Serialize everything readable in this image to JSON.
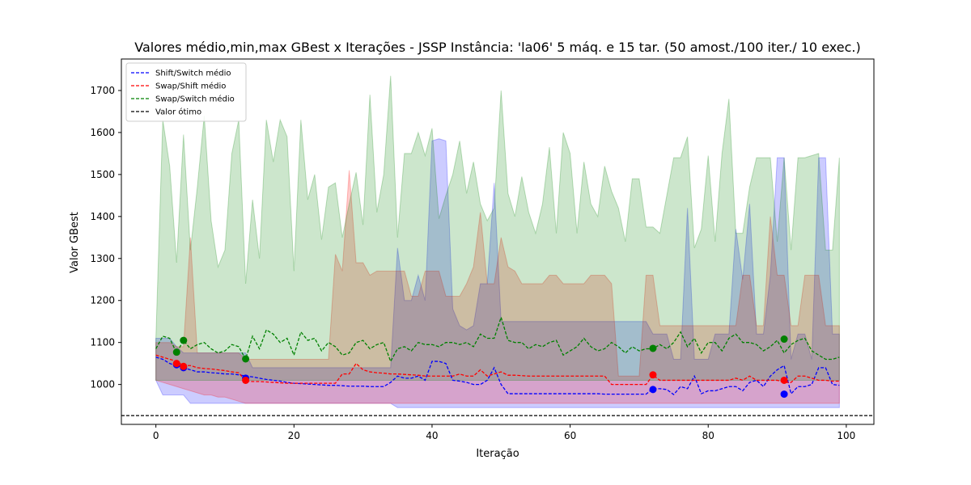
{
  "chart_data": {
    "type": "line",
    "title": "Valores médio,min,max GBest x Iterações - JSSP Instância: 'la06' 5 máq. e 15 tar. (50 amost./100 iter./ 10 exec.)",
    "xlabel": "Iteração",
    "ylabel": "Valor GBest",
    "xlim": [
      -5,
      104
    ],
    "ylim": [
      905,
      1775
    ],
    "xticks": [
      0,
      20,
      40,
      60,
      80,
      100
    ],
    "yticks": [
      1000,
      1100,
      1200,
      1300,
      1400,
      1500,
      1600,
      1700
    ],
    "grid": false,
    "legend_position": "top-left",
    "optimum": {
      "name": "Valor ótimo",
      "value": 926,
      "color": "#000000"
    },
    "series": [
      {
        "name": "Shift/Switch médio",
        "color": "#0000ff",
        "fill_color": "#0000ff",
        "mean": [
          1065,
          1060,
          1050,
          1045,
          1040,
          1035,
          1030,
          1030,
          1028,
          1027,
          1025,
          1025,
          1023,
          1020,
          1018,
          1015,
          1012,
          1010,
          1008,
          1005,
          1003,
          1002,
          1001,
          1000,
          999,
          998,
          998,
          997,
          996,
          996,
          996,
          995,
          995,
          995,
          1005,
          1020,
          1015,
          1015,
          1020,
          1010,
          1055,
          1055,
          1050,
          1010,
          1008,
          1005,
          1000,
          1000,
          1010,
          1040,
          1000,
          978,
          978,
          978,
          978,
          978,
          978,
          978,
          978,
          978,
          978,
          978,
          978,
          978,
          978,
          977,
          977,
          977,
          977,
          977,
          977,
          977,
          990,
          990,
          988,
          976,
          995,
          990,
          1020,
          978,
          985,
          985,
          990,
          995,
          995,
          985,
          1005,
          1010,
          995,
          1020,
          1035,
          1045,
          978,
          995,
          995,
          1000,
          1040,
          1040,
          1000,
          998
        ],
        "min": [
          1010,
          975,
          975,
          975,
          975,
          955,
          955,
          955,
          955,
          955,
          955,
          955,
          955,
          955,
          955,
          955,
          955,
          955,
          955,
          955,
          955,
          955,
          955,
          955,
          955,
          955,
          955,
          955,
          955,
          955,
          955,
          955,
          955,
          955,
          955,
          945,
          945,
          945,
          945,
          945,
          945,
          945,
          945,
          945,
          945,
          945,
          945,
          945,
          945,
          945,
          945,
          945,
          945,
          945,
          945,
          945,
          945,
          945,
          945,
          945,
          945,
          945,
          945,
          945,
          945,
          945,
          945,
          945,
          945,
          945,
          945,
          945,
          945,
          945,
          945,
          945,
          945,
          945,
          945,
          945,
          945,
          945,
          945,
          945,
          945,
          945,
          945,
          945,
          945,
          945,
          945,
          945,
          945,
          945,
          945,
          945,
          945,
          945,
          945,
          945
        ],
        "max": [
          1110,
          1110,
          1110,
          1090,
          1075,
          1075,
          1075,
          1075,
          1075,
          1075,
          1075,
          1075,
          1075,
          1075,
          1040,
          1040,
          1040,
          1040,
          1040,
          1040,
          1040,
          1040,
          1040,
          1040,
          1040,
          1040,
          1040,
          1040,
          1040,
          1040,
          1040,
          1040,
          1040,
          1040,
          1040,
          1325,
          1200,
          1200,
          1260,
          1200,
          1580,
          1585,
          1580,
          1180,
          1140,
          1130,
          1140,
          1240,
          1240,
          1480,
          1150,
          1150,
          1150,
          1150,
          1150,
          1150,
          1150,
          1150,
          1150,
          1150,
          1150,
          1150,
          1150,
          1150,
          1150,
          1150,
          1150,
          1150,
          1150,
          1150,
          1150,
          1150,
          1120,
          1120,
          1120,
          1060,
          1060,
          1420,
          1060,
          1060,
          1060,
          1120,
          1120,
          1120,
          1370,
          1250,
          1430,
          1120,
          1120,
          1260,
          1540,
          1540,
          1060,
          1120,
          1120,
          1060,
          1540,
          1540,
          1120,
          1120
        ]
      },
      {
        "name": "Swap/Shift médio",
        "color": "#ff0000",
        "fill_color": "#ff0000",
        "mean": [
          1070,
          1065,
          1060,
          1055,
          1045,
          1045,
          1040,
          1038,
          1037,
          1035,
          1033,
          1030,
          1028,
          1008,
          1007,
          1007,
          1006,
          1005,
          1004,
          1003,
          1003,
          1003,
          1003,
          1003,
          1003,
          1003,
          1003,
          1025,
          1025,
          1050,
          1035,
          1030,
          1028,
          1027,
          1025,
          1025,
          1024,
          1023,
          1022,
          1020,
          1020,
          1020,
          1020,
          1020,
          1025,
          1020,
          1020,
          1035,
          1020,
          1025,
          1030,
          1022,
          1022,
          1021,
          1020,
          1020,
          1020,
          1020,
          1020,
          1020,
          1020,
          1020,
          1020,
          1020,
          1020,
          1020,
          1000,
          1000,
          1000,
          1000,
          1000,
          1000,
          1022,
          1010,
          1010,
          1010,
          1010,
          1010,
          1010,
          1010,
          1010,
          1010,
          1010,
          1010,
          1015,
          1010,
          1020,
          1010,
          1010,
          1010,
          1010,
          1005,
          1005,
          1020,
          1020,
          1015,
          1010,
          1010,
          1008,
          1008
        ],
        "min": [
          1010,
          1005,
          1000,
          995,
          990,
          985,
          980,
          975,
          975,
          970,
          970,
          965,
          960,
          955,
          955,
          955,
          955,
          955,
          955,
          955,
          955,
          955,
          955,
          955,
          955,
          955,
          955,
          955,
          955,
          955,
          955,
          955,
          955,
          955,
          955,
          955,
          955,
          955,
          955,
          955,
          955,
          955,
          955,
          955,
          955,
          955,
          955,
          955,
          955,
          955,
          955,
          955,
          955,
          955,
          955,
          955,
          955,
          955,
          955,
          955,
          955,
          955,
          955,
          955,
          955,
          955,
          955,
          955,
          955,
          955,
          955,
          955,
          955,
          955,
          955,
          955,
          955,
          955,
          955,
          955,
          955,
          955,
          955,
          955,
          955,
          955,
          955,
          955,
          955,
          955,
          955,
          955,
          955,
          955,
          955,
          955,
          955,
          955,
          955,
          955
        ],
        "max": [
          1100,
          1100,
          1100,
          1090,
          1090,
          1350,
          1075,
          1075,
          1075,
          1075,
          1075,
          1075,
          1075,
          1060,
          1060,
          1060,
          1060,
          1060,
          1060,
          1060,
          1060,
          1060,
          1060,
          1060,
          1060,
          1060,
          1310,
          1270,
          1510,
          1290,
          1290,
          1260,
          1270,
          1270,
          1270,
          1270,
          1270,
          1210,
          1210,
          1270,
          1270,
          1270,
          1210,
          1210,
          1210,
          1240,
          1280,
          1410,
          1240,
          1240,
          1350,
          1280,
          1270,
          1240,
          1240,
          1240,
          1240,
          1260,
          1260,
          1240,
          1240,
          1240,
          1240,
          1260,
          1260,
          1260,
          1240,
          1020,
          1020,
          1020,
          1020,
          1260,
          1260,
          1140,
          1140,
          1140,
          1140,
          1140,
          1140,
          1140,
          1140,
          1140,
          1140,
          1140,
          1140,
          1260,
          1260,
          1140,
          1140,
          1400,
          1260,
          1260,
          1140,
          1140,
          1260,
          1260,
          1260,
          1140,
          1140,
          1140
        ]
      },
      {
        "name": "Swap/Switch médio",
        "color": "#008000",
        "fill_color": "#008000",
        "mean": [
          1085,
          1115,
          1110,
          1075,
          1105,
          1085,
          1095,
          1100,
          1085,
          1075,
          1080,
          1095,
          1090,
          1060,
          1115,
          1085,
          1130,
          1120,
          1100,
          1110,
          1070,
          1125,
          1105,
          1110,
          1080,
          1100,
          1090,
          1070,
          1075,
          1100,
          1105,
          1085,
          1095,
          1100,
          1055,
          1085,
          1090,
          1080,
          1100,
          1095,
          1095,
          1090,
          1100,
          1100,
          1095,
          1100,
          1090,
          1120,
          1110,
          1110,
          1160,
          1105,
          1100,
          1100,
          1085,
          1095,
          1090,
          1100,
          1105,
          1070,
          1080,
          1090,
          1110,
          1090,
          1080,
          1085,
          1100,
          1090,
          1075,
          1090,
          1080,
          1085,
          1085,
          1095,
          1085,
          1100,
          1125,
          1090,
          1110,
          1075,
          1100,
          1100,
          1080,
          1110,
          1120,
          1100,
          1100,
          1095,
          1080,
          1090,
          1105,
          1075,
          1095,
          1105,
          1110,
          1080,
          1070,
          1060,
          1060,
          1065
        ],
        "min": [
          1010,
          1010,
          1010,
          1010,
          1010,
          1010,
          1010,
          1010,
          1010,
          1010,
          1010,
          1010,
          1010,
          1010,
          1010,
          1010,
          1010,
          1010,
          1010,
          1010,
          1010,
          1010,
          1010,
          1010,
          1010,
          1010,
          1010,
          1010,
          1010,
          1010,
          1010,
          1010,
          1010,
          1010,
          1010,
          1010,
          1010,
          1010,
          1010,
          1010,
          1010,
          1010,
          1010,
          1010,
          1010,
          1010,
          1010,
          1010,
          1010,
          1010,
          1010,
          1010,
          1010,
          1010,
          1010,
          1010,
          1010,
          1010,
          1010,
          1010,
          1010,
          1010,
          1010,
          1010,
          1010,
          1010,
          1010,
          1010,
          1010,
          1010,
          1010,
          1010,
          1010,
          1010,
          1010,
          1010,
          1010,
          1010,
          1010,
          1010,
          1010,
          1010,
          1010,
          1010,
          1010,
          1010,
          1010,
          1010,
          1010,
          1010,
          1010,
          1010,
          1010,
          1010,
          1010,
          1010,
          1010,
          1010,
          1010,
          1010
        ],
        "max": [
          1110,
          1630,
          1520,
          1290,
          1595,
          1320,
          1470,
          1640,
          1390,
          1280,
          1320,
          1550,
          1630,
          1240,
          1440,
          1300,
          1630,
          1530,
          1630,
          1590,
          1270,
          1630,
          1440,
          1500,
          1345,
          1470,
          1480,
          1350,
          1430,
          1505,
          1380,
          1690,
          1410,
          1500,
          1735,
          1350,
          1550,
          1550,
          1600,
          1545,
          1610,
          1395,
          1450,
          1500,
          1580,
          1455,
          1530,
          1430,
          1390,
          1420,
          1700,
          1455,
          1400,
          1495,
          1410,
          1360,
          1430,
          1565,
          1360,
          1600,
          1550,
          1360,
          1530,
          1430,
          1400,
          1520,
          1460,
          1420,
          1340,
          1490,
          1490,
          1375,
          1375,
          1360,
          1450,
          1540,
          1540,
          1590,
          1325,
          1370,
          1545,
          1340,
          1550,
          1680,
          1360,
          1360,
          1470,
          1540,
          1540,
          1540,
          1340,
          1540,
          1320,
          1540,
          1540,
          1545,
          1550,
          1320,
          1320,
          1540
        ]
      }
    ],
    "markers": [
      {
        "series": "Shift/Switch médio",
        "x": [
          3,
          4,
          13,
          72,
          91
        ],
        "y": [
          1047,
          1040,
          1015,
          988,
          977
        ]
      },
      {
        "series": "Swap/Shift médio",
        "x": [
          3,
          4,
          13,
          72,
          91
        ],
        "y": [
          1050,
          1043,
          1010,
          1023,
          1010
        ]
      },
      {
        "series": "Swap/Switch médio",
        "x": [
          3,
          4,
          13,
          72,
          91
        ],
        "y": [
          1077,
          1105,
          1061,
          1086,
          1108
        ]
      }
    ]
  }
}
